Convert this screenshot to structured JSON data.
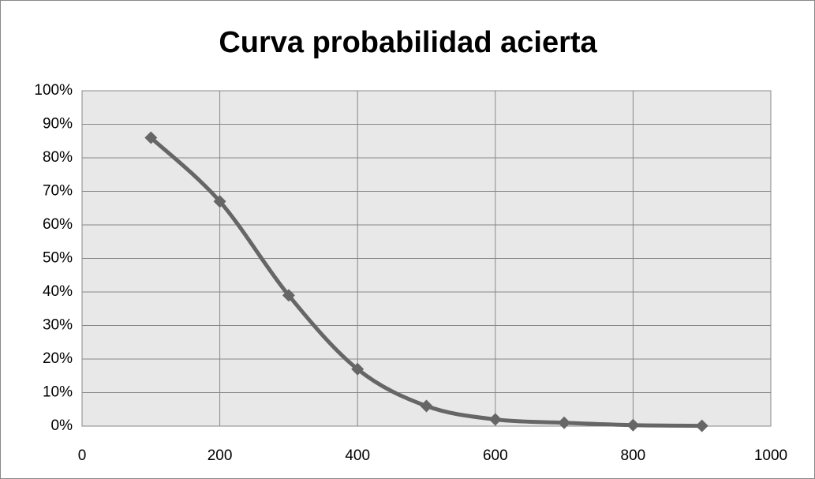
{
  "chart_data": {
    "type": "line",
    "title": "Curva probabilidad acierta",
    "x": [
      100,
      200,
      300,
      400,
      500,
      600,
      700,
      800,
      900
    ],
    "values": [
      86,
      67,
      39,
      17,
      6,
      2,
      1,
      0.3,
      0.1
    ],
    "color": "#666666",
    "smooth": true,
    "marker": "diamond",
    "xlim": [
      0,
      1000
    ],
    "xticks": [
      0,
      200,
      400,
      600,
      800,
      1000
    ],
    "ylim": [
      0,
      100
    ],
    "yticks": [
      {
        "value": 0,
        "label": "0%"
      },
      {
        "value": 10,
        "label": "10%"
      },
      {
        "value": 20,
        "label": "20%"
      },
      {
        "value": 30,
        "label": "30%"
      },
      {
        "value": 40,
        "label": "40%"
      },
      {
        "value": 50,
        "label": "50%"
      },
      {
        "value": 60,
        "label": "60%"
      },
      {
        "value": 70,
        "label": "70%"
      },
      {
        "value": 80,
        "label": "80%"
      },
      {
        "value": 90,
        "label": "90%"
      },
      {
        "value": 100,
        "label": "100%"
      }
    ],
    "grid": true
  }
}
